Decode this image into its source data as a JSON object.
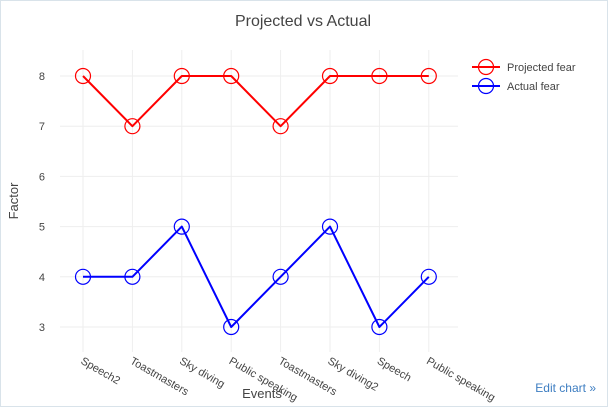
{
  "chart_data": {
    "type": "line",
    "title": "Projected vs Actual",
    "xlabel": "Events",
    "ylabel": "Factor",
    "categories": [
      "Speech2",
      "Toastmasters",
      "Sky diving",
      "Public speaking",
      "Toastmasters",
      "Sky diving2",
      "Speech",
      "Public speaking"
    ],
    "ylim": [
      2.6,
      8.5
    ],
    "yticks": [
      3,
      4,
      5,
      6,
      7,
      8
    ],
    "grid": true,
    "legend": "top-right",
    "series": [
      {
        "name": "Projected fear",
        "color": "#ff0000",
        "values": [
          8,
          7,
          8,
          8,
          7,
          8,
          8,
          8
        ]
      },
      {
        "name": "Actual fear",
        "color": "#0000ff",
        "values": [
          4,
          4,
          5,
          3,
          4,
          5,
          3,
          4
        ]
      }
    ]
  },
  "footer": {
    "edit_link": "Edit chart »"
  }
}
